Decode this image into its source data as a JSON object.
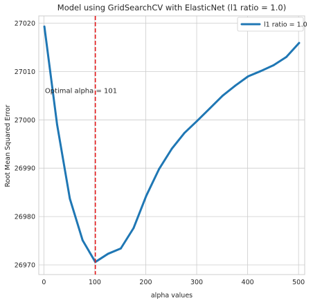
{
  "chart_data": {
    "type": "line",
    "title": "Model using GridSearchCV with ElasticNet (l1 ratio = 1.0)",
    "xlabel": "alpha values",
    "ylabel": "Root Mean Squared Error",
    "xlim": [
      -10,
      512
    ],
    "ylim": [
      26968,
      27021.5
    ],
    "x_ticks": [
      0,
      100,
      200,
      300,
      400,
      500
    ],
    "y_ticks": [
      26970,
      26980,
      26990,
      27000,
      27010,
      27020
    ],
    "grid": true,
    "legend_position": "upper right",
    "series": [
      {
        "name": "l1 ratio = 1.0",
        "color": "#1f77b4",
        "x": [
          1,
          26,
          51,
          76,
          101,
          126,
          151,
          176,
          201,
          226,
          251,
          276,
          301,
          326,
          351,
          376,
          401,
          426,
          451,
          476,
          501
        ],
        "y": [
          27019.3,
          26999.0,
          26983.7,
          26975.1,
          26970.6,
          26972.3,
          26973.4,
          26977.6,
          26984.3,
          26989.8,
          26994.0,
          26997.3,
          26999.8,
          27002.4,
          27005.0,
          27007.1,
          27009.0,
          27010.1,
          27011.3,
          27013.0,
          27015.9
        ]
      }
    ],
    "reference_line": {
      "x": 101,
      "color": "#e41a1c",
      "style": "dashed"
    },
    "annotation": {
      "text": "Optimal alpha = 101",
      "x": 2,
      "y": 27006
    }
  }
}
